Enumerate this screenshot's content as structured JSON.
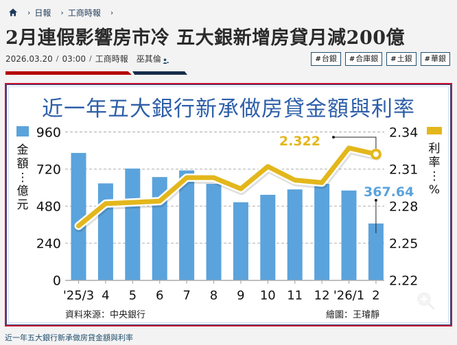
{
  "breadcrumb": {
    "home_icon": "home-icon",
    "items": [
      {
        "label": "日報"
      },
      {
        "label": "工商時報"
      }
    ],
    "trailing_chevron": "chevron-right-icon"
  },
  "article": {
    "title": "2月連假影響房市冷 五大銀新增房貸月減200億",
    "date": "2026.03.20",
    "time": "03:00",
    "publication": "工商時報",
    "author": "巫其倫",
    "author_icon": "person-icon",
    "tags": [
      {
        "label": "台銀"
      },
      {
        "label": "合庫銀"
      },
      {
        "label": "土銀"
      },
      {
        "label": "華銀"
      }
    ],
    "tag_prefix": "#",
    "colors": {
      "accent_red": "#b40000",
      "accent_navy": "#172d4a"
    }
  },
  "figure": {
    "caption": "近一年五大銀行新承做房貸金額與利率",
    "source": "資料來源：中央銀行",
    "credit": "繪圖：王璿靜",
    "zoom_icon": "zoom-in-icon"
  },
  "chart_data": {
    "type": "bar",
    "title": "近一年五大銀行新承做房貸金額與利率",
    "categories": [
      "'25/3",
      "4",
      "5",
      "6",
      "7",
      "8",
      "9",
      "10",
      "11",
      "12",
      "'26/1",
      "2"
    ],
    "series": [
      {
        "name": "金額：億元",
        "type": "bar",
        "axis": "left",
        "color": "#5ba3dc",
        "values": [
          824,
          627,
          723,
          668,
          711,
          624,
          505,
          553,
          588,
          624,
          581,
          367.64
        ]
      },
      {
        "name": "利率：%",
        "type": "line",
        "axis": "right",
        "color": "#e3b71c",
        "values": [
          2.264,
          2.282,
          2.283,
          2.284,
          2.303,
          2.303,
          2.294,
          2.312,
          2.301,
          2.299,
          2.327,
          2.322
        ]
      }
    ],
    "left_axis": {
      "label": "金額：億元",
      "ticks": [
        "0",
        "240",
        "480",
        "720",
        "960"
      ],
      "ylim": [
        0,
        960
      ]
    },
    "right_axis": {
      "label": "利率：%",
      "ticks": [
        "2.22",
        "2.25",
        "2.28",
        "2.31",
        "2.34"
      ],
      "ylim": [
        2.22,
        2.34
      ]
    },
    "annotations": [
      {
        "text": "2.322",
        "series": "利率：%",
        "category": "2",
        "color": "#e3b71c"
      },
      {
        "text": "367.64",
        "series": "金額：億元",
        "category": "2",
        "color": "#5ba3dc"
      }
    ],
    "grid": true,
    "legend": {
      "left": "金額：億元",
      "right": "利率：%"
    }
  }
}
